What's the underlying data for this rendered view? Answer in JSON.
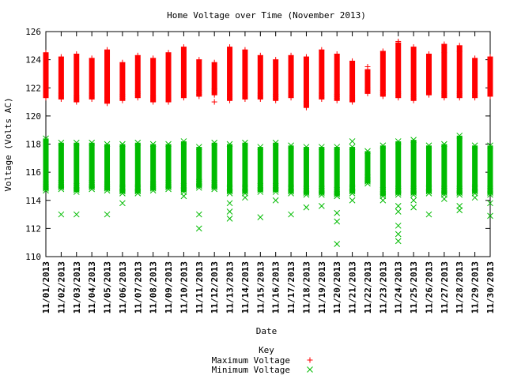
{
  "chart_data": {
    "type": "scatter",
    "title": "Home Voltage over Time (November 2013)",
    "xlabel": "Date",
    "ylabel": "Voltage (Volts AC)",
    "ylim": [
      110,
      126
    ],
    "yticks": [
      110,
      112,
      114,
      116,
      118,
      120,
      122,
      124,
      126
    ],
    "categories": [
      "11/01/2013",
      "11/02/2013",
      "11/03/2013",
      "11/04/2013",
      "11/05/2013",
      "11/06/2013",
      "11/07/2013",
      "11/08/2013",
      "11/09/2013",
      "11/10/2013",
      "11/11/2013",
      "11/12/2013",
      "11/13/2013",
      "11/14/2013",
      "11/15/2013",
      "11/16/2013",
      "11/17/2013",
      "11/18/2013",
      "11/19/2013",
      "11/20/2013",
      "11/21/2013",
      "11/22/2013",
      "11/23/2013",
      "11/24/2013",
      "11/25/2013",
      "11/26/2013",
      "11/27/2013",
      "11/28/2013",
      "11/29/2013",
      "11/30/2013"
    ],
    "legend": {
      "title": "Key",
      "placement": "bottom-center"
    },
    "series": [
      {
        "name": "Maximum Voltage",
        "marker": "+",
        "color": "#ff0000",
        "ranges": [
          [
            121.3,
            124.5
          ],
          [
            121.2,
            124.2
          ],
          [
            121.0,
            124.4
          ],
          [
            121.2,
            124.1
          ],
          [
            120.9,
            124.7
          ],
          [
            121.1,
            123.8
          ],
          [
            121.3,
            124.3
          ],
          [
            121.0,
            124.1
          ],
          [
            121.0,
            124.5
          ],
          [
            121.3,
            124.9
          ],
          [
            121.4,
            124.0
          ],
          [
            121.5,
            123.8
          ],
          [
            121.1,
            124.9
          ],
          [
            121.2,
            124.7
          ],
          [
            121.2,
            124.3
          ],
          [
            121.1,
            124.0
          ],
          [
            121.3,
            124.3
          ],
          [
            120.6,
            124.2
          ],
          [
            121.2,
            124.7
          ],
          [
            121.1,
            124.4
          ],
          [
            121.0,
            123.9
          ],
          [
            121.6,
            123.3
          ],
          [
            121.4,
            124.6
          ],
          [
            121.3,
            125.2
          ],
          [
            121.1,
            124.9
          ],
          [
            121.5,
            124.4
          ],
          [
            121.3,
            125.1
          ],
          [
            121.3,
            125.0
          ],
          [
            121.3,
            124.1
          ],
          [
            121.4,
            124.2
          ]
        ],
        "outliers": [
          [
            11,
            121.0
          ],
          [
            21,
            123.5
          ],
          [
            23,
            125.3
          ],
          [
            26,
            124.5
          ],
          [
            27,
            124.6
          ]
        ]
      },
      {
        "name": "Minimum Voltage",
        "marker": "x",
        "color": "#00bb00",
        "ranges": [
          [
            114.7,
            118.4
          ],
          [
            114.8,
            118.1
          ],
          [
            114.6,
            118.1
          ],
          [
            114.8,
            118.1
          ],
          [
            114.7,
            118.0
          ],
          [
            114.5,
            118.0
          ],
          [
            114.5,
            118.1
          ],
          [
            114.7,
            118.0
          ],
          [
            114.8,
            118.0
          ],
          [
            114.6,
            118.2
          ],
          [
            114.9,
            117.8
          ],
          [
            114.8,
            118.1
          ],
          [
            114.5,
            118.0
          ],
          [
            114.5,
            118.1
          ],
          [
            114.6,
            117.8
          ],
          [
            114.6,
            118.1
          ],
          [
            114.5,
            117.9
          ],
          [
            114.4,
            117.8
          ],
          [
            114.4,
            117.8
          ],
          [
            114.3,
            117.8
          ],
          [
            114.5,
            117.8
          ],
          [
            115.2,
            117.5
          ],
          [
            114.3,
            117.9
          ],
          [
            114.4,
            118.2
          ],
          [
            114.4,
            118.3
          ],
          [
            114.5,
            117.9
          ],
          [
            114.4,
            118.0
          ],
          [
            114.4,
            118.6
          ],
          [
            114.5,
            117.9
          ],
          [
            114.4,
            117.9
          ]
        ],
        "outliers": [
          [
            1,
            113.0
          ],
          [
            2,
            113.0
          ],
          [
            4,
            113.0
          ],
          [
            5,
            113.8
          ],
          [
            9,
            114.3
          ],
          [
            10,
            113.0
          ],
          [
            10,
            112.0
          ],
          [
            12,
            113.8
          ],
          [
            12,
            113.2
          ],
          [
            12,
            112.7
          ],
          [
            13,
            114.2
          ],
          [
            14,
            112.8
          ],
          [
            15,
            114.0
          ],
          [
            16,
            113.0
          ],
          [
            17,
            113.5
          ],
          [
            18,
            113.6
          ],
          [
            19,
            113.1
          ],
          [
            19,
            112.5
          ],
          [
            19,
            110.9
          ],
          [
            20,
            114.0
          ],
          [
            20,
            118.2
          ],
          [
            22,
            114.0
          ],
          [
            23,
            113.6
          ],
          [
            23,
            113.2
          ],
          [
            23,
            112.2
          ],
          [
            23,
            111.6
          ],
          [
            23,
            111.1
          ],
          [
            24,
            114.0
          ],
          [
            24,
            113.5
          ],
          [
            25,
            113.0
          ],
          [
            26,
            114.1
          ],
          [
            27,
            113.6
          ],
          [
            27,
            113.3
          ],
          [
            28,
            114.2
          ],
          [
            29,
            113.8
          ],
          [
            29,
            112.9
          ]
        ]
      }
    ]
  }
}
